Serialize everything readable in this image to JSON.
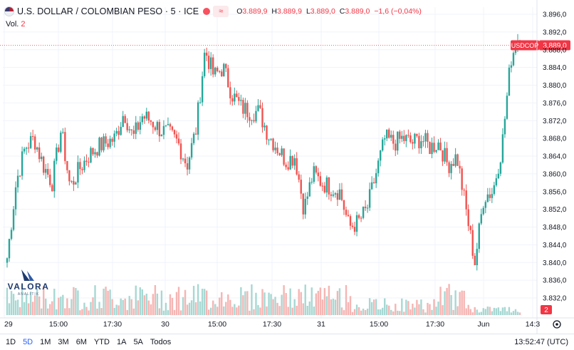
{
  "legend": {
    "title": "U.S. DOLLAR / COLOMBIAN PESO · 5 · ICE",
    "symbol_icon": "approx-icon",
    "ohlc": [
      {
        "k": "O",
        "v": "3.889,9"
      },
      {
        "k": "H",
        "v": "3.889,9"
      },
      {
        "k": "L",
        "v": "3.889,0"
      },
      {
        "k": "C",
        "v": "3.889,0"
      }
    ],
    "change": "−1,6 (−0,04%)"
  },
  "volume": {
    "label": "Vol.",
    "value": "2"
  },
  "watermark": {
    "brand": "VALORA",
    "sub": "ANALITIK"
  },
  "bottom": {
    "ranges": [
      "1D",
      "5D",
      "1M",
      "3M",
      "6M",
      "YTD",
      "1A",
      "5A",
      "Todos"
    ],
    "active_range": "5D",
    "clock": "13:52:47 (UTC)"
  },
  "colors": {
    "up": "#26a69a",
    "down": "#ef5350",
    "up_vol": "#a7d8d3",
    "down_vol": "#f5b5b3",
    "price_tag": "#f23645"
  },
  "chart_data": {
    "type": "candlestick",
    "symbol": "USDCOP",
    "last_price": "3.889,0",
    "volume_badge": "2",
    "ylim": [
      3830,
      3898
    ],
    "yticks": [
      "3.896,0",
      "3.892,0",
      "3.888,0",
      "3.884,0",
      "3.880,0",
      "3.876,0",
      "3.872,0",
      "3.868,0",
      "3.864,0",
      "3.860,0",
      "3.856,0",
      "3.852,0",
      "3.848,0",
      "3.844,0",
      "3.840,0",
      "3.836,0",
      "3.832,0"
    ],
    "x_labels": [
      "29",
      "15:00",
      "17:30",
      "30",
      "15:00",
      "17:30",
      "31",
      "15:00",
      "17:30",
      "Jun",
      "14:3"
    ],
    "close_path": [
      3841,
      3858,
      3866,
      3868,
      3862,
      3858,
      3870,
      3857,
      3861,
      3864,
      3866,
      3867,
      3868,
      3874,
      3868,
      3873,
      3872,
      3870,
      3869,
      3867,
      3862,
      3870,
      3888,
      3882,
      3884,
      3878,
      3875,
      3874,
      3874,
      3869,
      3866,
      3863,
      3864,
      3852,
      3860,
      3858,
      3857,
      3856,
      3848,
      3849,
      3852,
      3860,
      3868,
      3867,
      3868,
      3867,
      3868,
      3866,
      3867,
      3862,
      3864,
      3852,
      3840,
      3855,
      3856,
      3866,
      3886,
      3892
    ]
  }
}
